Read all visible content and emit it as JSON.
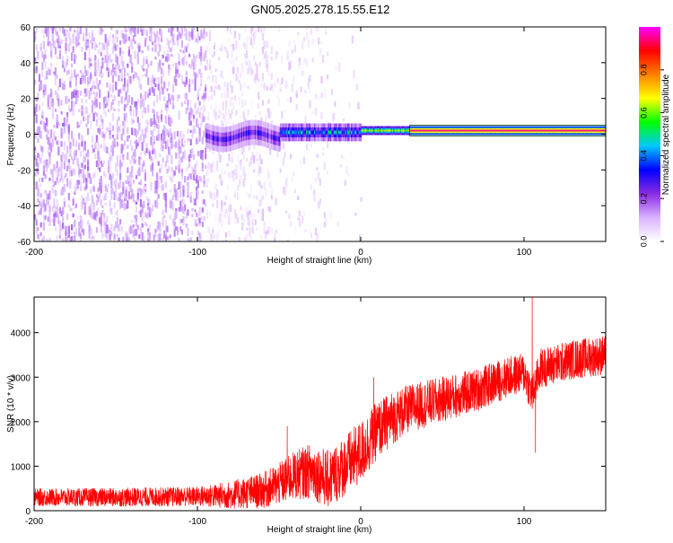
{
  "figure": {
    "title": "GN05.2025.278.15.55.E12"
  },
  "chart_data": [
    {
      "type": "heatmap",
      "xlabel": "Height of straight line (km)",
      "ylabel": "Frequency (Hz)",
      "xlim": [
        -200,
        150
      ],
      "ylim": [
        -60,
        60
      ],
      "x_ticks": [
        -200,
        -100,
        0,
        100
      ],
      "x_tick_labels": [
        "-200",
        "-100",
        "0",
        "100"
      ],
      "y_ticks": [
        60,
        40,
        20,
        0,
        -20,
        -40,
        -60
      ],
      "y_tick_labels": [
        "60",
        "40",
        "20",
        "0",
        "-20",
        "-40",
        "-60"
      ],
      "colorbar": {
        "label": "Normalized spectral amplitude",
        "range": [
          0,
          1
        ],
        "ticks": [
          0.0,
          0.2,
          0.4,
          0.6,
          0.8
        ],
        "tick_labels": [
          "0.0",
          "0.2",
          "0.4",
          "0.6",
          "0.8"
        ],
        "colormap": [
          "#ffffff",
          "#d9b3ff",
          "#8a2be2",
          "#0000ff",
          "#00c8ff",
          "#00ff00",
          "#ffff00",
          "#ff8000",
          "#ff0000",
          "#ff00ff"
        ]
      },
      "features": [
        {
          "x_range": [
            -200,
            -95
          ],
          "freq_range": [
            -60,
            60
          ],
          "level": 0.08
        },
        {
          "x_range": [
            -95,
            -50
          ],
          "freq_range": [
            -60,
            60
          ],
          "level": 0.04
        },
        {
          "x_range": [
            -50,
            -20
          ],
          "freq_range": [
            -60,
            60
          ],
          "level": 0.02
        },
        {
          "x_range": [
            -95,
            -50
          ],
          "freq_center": 0,
          "level": 0.25
        },
        {
          "x_range": [
            -50,
            0
          ],
          "freq_center": 1,
          "level": 0.35
        },
        {
          "x_range": [
            0,
            150
          ],
          "freq_center": 2,
          "level": 0.95
        }
      ]
    },
    {
      "type": "line",
      "xlabel": "Height of straight line (km)",
      "ylabel": "SNR (10 * v/v)",
      "xlim": [
        -200,
        150
      ],
      "ylim": [
        0,
        4800
      ],
      "x_ticks": [
        -200,
        -100,
        0,
        100
      ],
      "x_tick_labels": [
        "-200",
        "-100",
        "0",
        "100"
      ],
      "y_ticks": [
        0,
        1000,
        2000,
        3000,
        4000
      ],
      "y_tick_labels": [
        "0",
        "1000",
        "2000",
        "3000",
        "4000"
      ],
      "series_color": "#ff0000",
      "trend": {
        "x": [
          -200,
          -150,
          -100,
          -80,
          -60,
          -50,
          -40,
          -30,
          -20,
          -10,
          0,
          10,
          20,
          30,
          50,
          70,
          90,
          100,
          105,
          110,
          130,
          150
        ],
        "y": [
          300,
          300,
          320,
          350,
          450,
          600,
          800,
          900,
          700,
          1000,
          1300,
          1800,
          2100,
          2300,
          2500,
          2700,
          3000,
          3100,
          2600,
          3200,
          3400,
          3500
        ]
      },
      "noise_amplitude": {
        "x": [
          -200,
          -100,
          -60,
          -30,
          0,
          30,
          100,
          150
        ],
        "y": [
          220,
          250,
          450,
          700,
          800,
          600,
          500,
          500
        ]
      },
      "spikes": [
        {
          "x": 8,
          "y": 3000
        },
        {
          "x": 105,
          "y": 4800
        },
        {
          "x": 107,
          "y": 1300
        },
        {
          "x": -45,
          "y": 1900
        }
      ]
    }
  ]
}
